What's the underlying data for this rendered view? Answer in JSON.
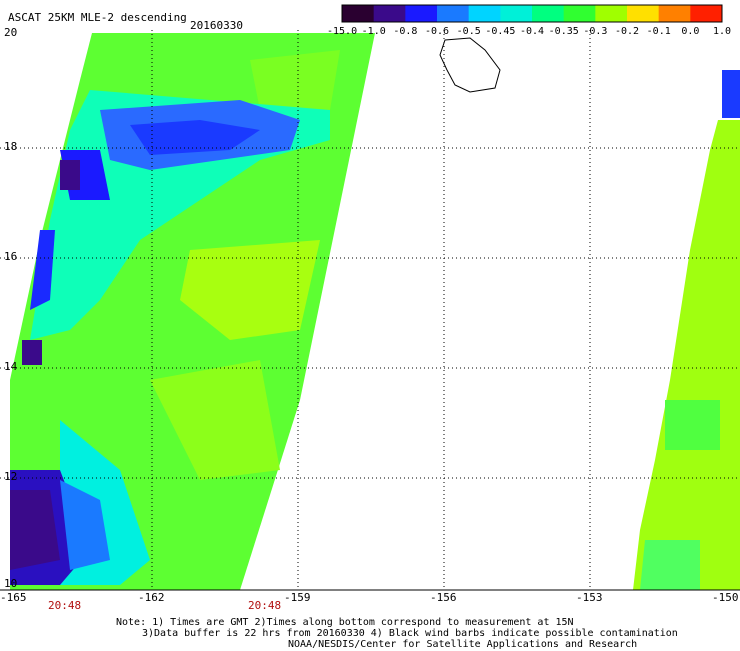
{
  "header": {
    "title": "ASCAT 25KM MLE-2 descending",
    "date": "20160330"
  },
  "colorbar": {
    "labels": [
      "-15.0",
      "-1.0",
      "-0.8",
      "-0.6",
      "-0.5",
      "-0.45",
      "-0.4",
      "-0.35",
      "-0.3",
      "-0.2",
      "-0.1",
      "0.0",
      "1.0"
    ],
    "colors": [
      "#2a0030",
      "#3a0a8a",
      "#1a1aff",
      "#1a7aff",
      "#00d4ff",
      "#00f0d8",
      "#00ff80",
      "#30ff30",
      "#a0ff00",
      "#ffe000",
      "#ff8000",
      "#ff2000"
    ]
  },
  "axes": {
    "lat_labels": [
      "20",
      "18",
      "16",
      "14",
      "12",
      "10"
    ],
    "lon_labels": [
      "-165",
      "-162",
      "-159",
      "-156",
      "-153",
      "-150"
    ],
    "time_labels": [
      "20:48",
      "20:48"
    ]
  },
  "notes": [
    "Note: 1) Times are GMT 2)Times along bottom correspond to measurement at 15N",
    "3)Data buffer is 22 hrs from 20160330 4) Black wind barbs indicate possible contamination",
    "NOAA/NESDIS/Center for Satellite Applications and Research"
  ]
}
